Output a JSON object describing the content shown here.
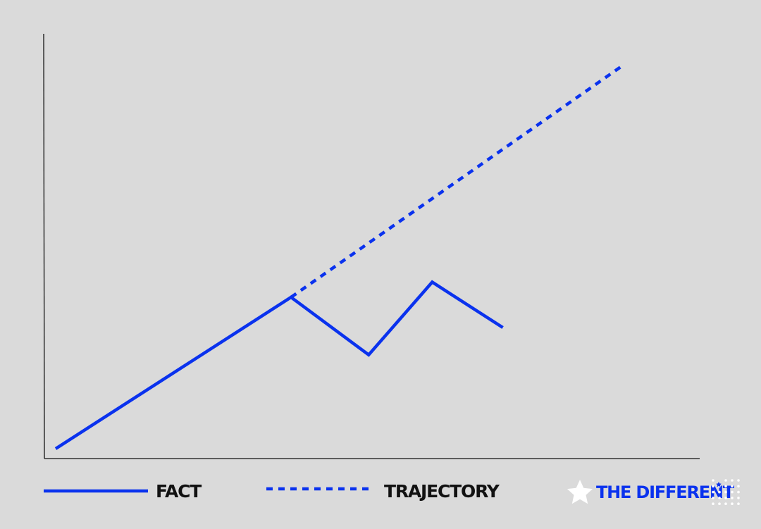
{
  "chart_data": {
    "type": "line",
    "title": "",
    "xlabel": "",
    "ylabel": "",
    "grid": false,
    "axis_ticks": false,
    "legend_position": "bottom",
    "x": [
      0,
      1,
      2,
      3,
      4,
      5
    ],
    "series": [
      {
        "name": "FACT",
        "style": "solid",
        "color": "#0a32ee",
        "points": [
          [
            0,
            0
          ],
          [
            1,
            1
          ],
          [
            1.33,
            0.62
          ],
          [
            1.6,
            1.1
          ],
          [
            1.9,
            0.8
          ]
        ]
      },
      {
        "name": "TRAJECTORY",
        "style": "dashed",
        "color": "#0a32ee",
        "points": [
          [
            1,
            1
          ],
          [
            2.4,
            2.52
          ]
        ]
      }
    ]
  },
  "legend": {
    "items": [
      {
        "label": "FACT",
        "style": "solid"
      },
      {
        "label": "TRAJECTORY",
        "style": "dashed"
      }
    ]
  },
  "brand": {
    "text": "THE DIFFERENT",
    "icon": "star-icon",
    "color": "#0a32ee"
  },
  "colors": {
    "background": "#dadada",
    "accent": "#0a32ee",
    "axis": "#111111",
    "text": "#111111",
    "star": "#ffffff"
  }
}
